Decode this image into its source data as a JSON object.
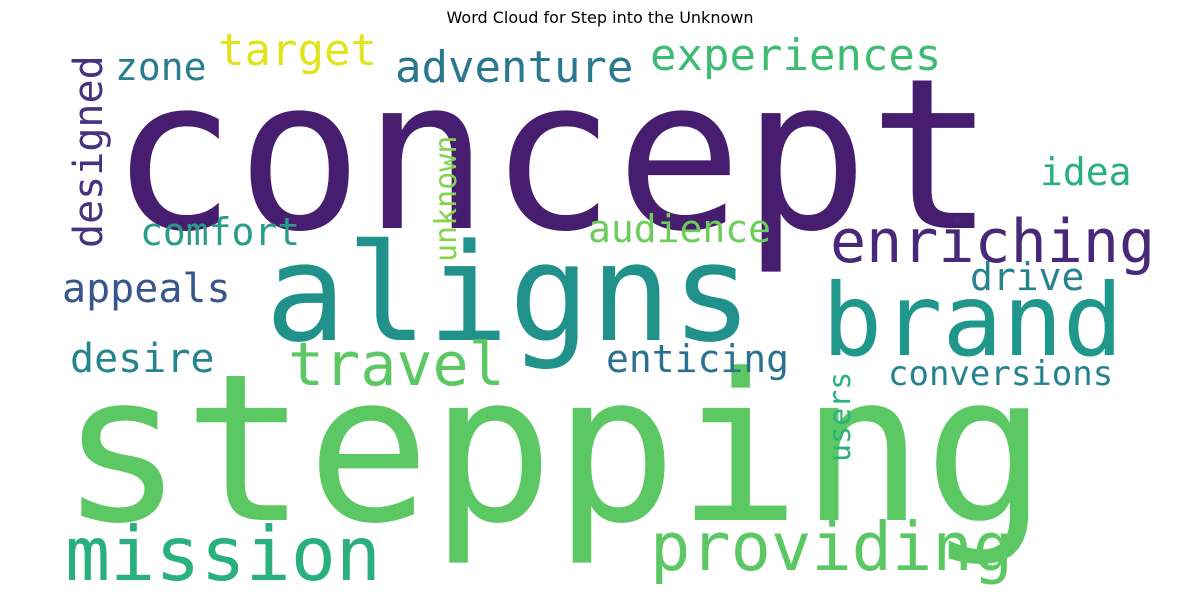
{
  "title": "Word Cloud for Step into the Unknown",
  "words": [
    {
      "text": "concept",
      "color": "#471e6f"
    },
    {
      "text": "stepping",
      "color": "#5cc863"
    },
    {
      "text": "aligns",
      "color": "#21918c"
    },
    {
      "text": "brand",
      "color": "#1f988b"
    },
    {
      "text": "mission",
      "color": "#2ab07f"
    },
    {
      "text": "providing",
      "color": "#5cc863"
    },
    {
      "text": "enriching",
      "color": "#482878"
    },
    {
      "text": "travel",
      "color": "#5cc863"
    },
    {
      "text": "adventure",
      "color": "#2a788e"
    },
    {
      "text": "experiences",
      "color": "#3fbc73"
    },
    {
      "text": "target",
      "color": "#e0e41a"
    },
    {
      "text": "zone",
      "color": "#287d8e"
    },
    {
      "text": "designed",
      "color": "#46337f"
    },
    {
      "text": "comfort",
      "color": "#2a9d8a"
    },
    {
      "text": "audience",
      "color": "#6ccd5a"
    },
    {
      "text": "unknown",
      "color": "#84d44b"
    },
    {
      "text": "idea",
      "color": "#2ab07f"
    },
    {
      "text": "appeals",
      "color": "#39568c"
    },
    {
      "text": "drive",
      "color": "#26828e"
    },
    {
      "text": "desire",
      "color": "#25858e"
    },
    {
      "text": "enticing",
      "color": "#2c728e"
    },
    {
      "text": "conversions",
      "color": "#25838e"
    },
    {
      "text": "users",
      "color": "#2db27d"
    }
  ]
}
